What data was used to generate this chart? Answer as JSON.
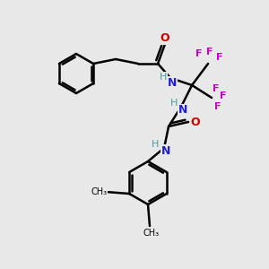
{
  "bg_color": "#e8e8e8",
  "atom_colors": {
    "C": "#000000",
    "H": "#4a9e9e",
    "N": "#2020cc",
    "O": "#cc0000",
    "F": "#cc00cc"
  },
  "bond_color": "#000000",
  "bond_width": 1.8,
  "figsize": [
    3.0,
    3.0
  ],
  "dpi": 100,
  "xlim": [
    0,
    300
  ],
  "ylim": [
    0,
    300
  ]
}
